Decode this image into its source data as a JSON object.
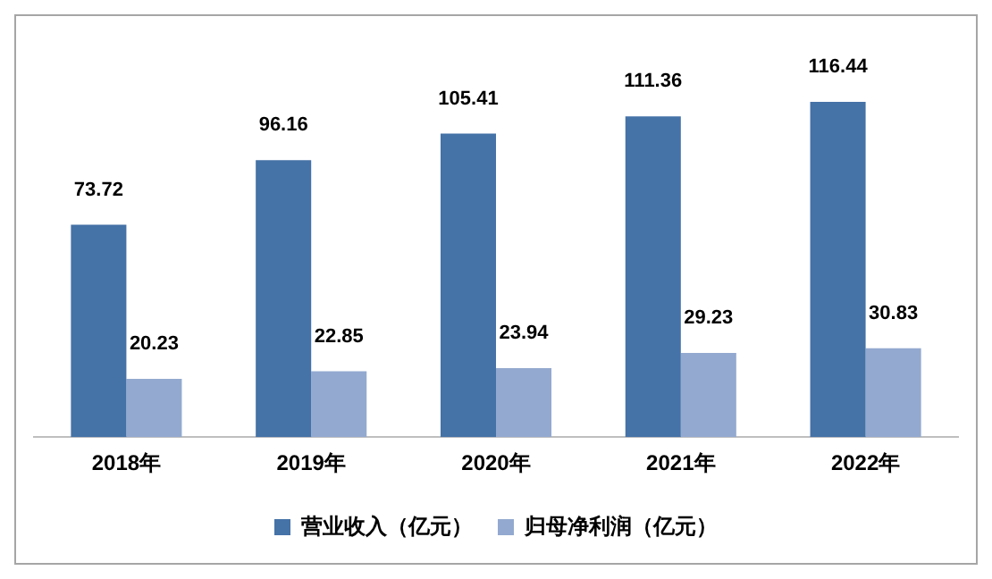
{
  "chart_data": {
    "type": "bar",
    "categories": [
      "2018年",
      "2019年",
      "2020年",
      "2021年",
      "2022年"
    ],
    "series": [
      {
        "name": "营业收入（亿元）",
        "color": "#4572a7",
        "values": [
          73.72,
          96.16,
          105.41,
          111.36,
          116.44
        ]
      },
      {
        "name": "归母净利润（亿元）",
        "color": "#93a9cf",
        "values": [
          20.23,
          22.85,
          23.94,
          29.23,
          30.83
        ]
      }
    ],
    "data_labels": true,
    "grid": false,
    "legend": "bottom",
    "tick_labels": "x"
  }
}
